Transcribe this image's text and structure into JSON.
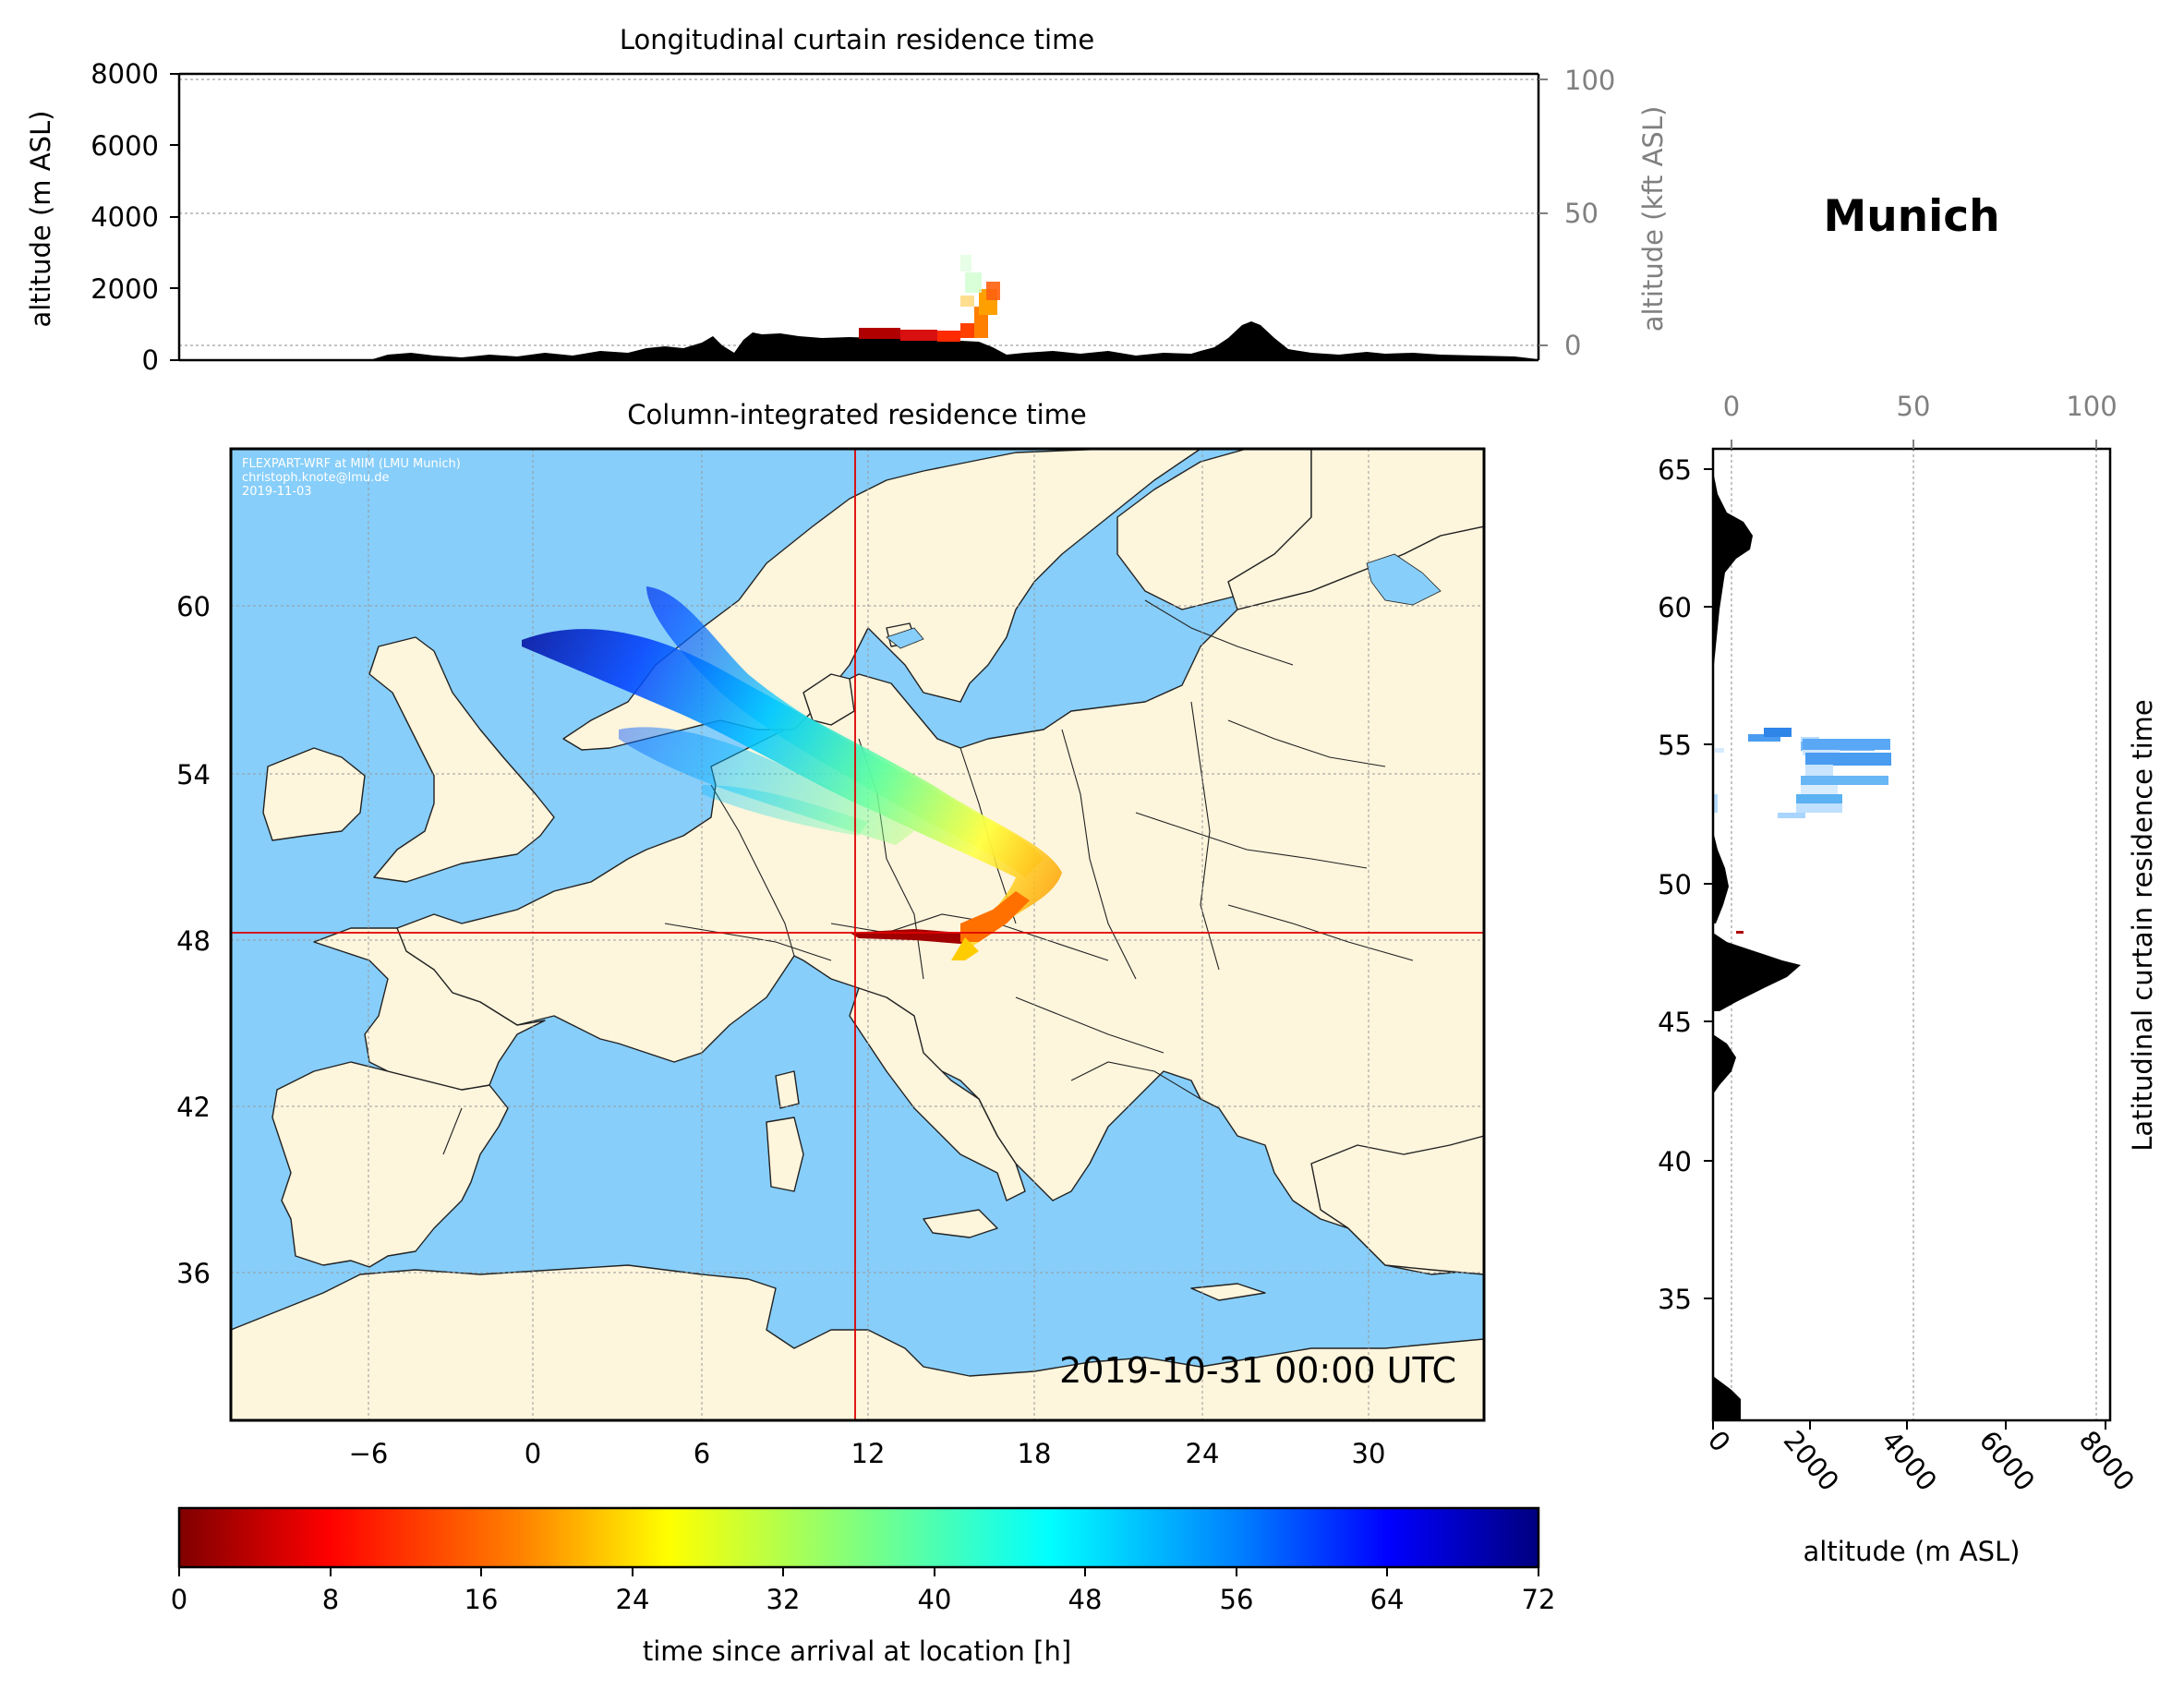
{
  "figure": {
    "location_title": "Munich",
    "timestamp": "2019-10-31 00:00 UTC",
    "credits": [
      "FLEXPART-WRF at MIM (LMU Munich)",
      "christoph.knote@lmu.de",
      "2019-11-03"
    ]
  },
  "top_panel": {
    "title": "Longitudinal curtain residence time",
    "ylabel_left": "altitude (m ASL)",
    "ylabel_right": "altitude (kft ASL)",
    "yticks_left": [
      "0",
      "2000",
      "4000",
      "6000",
      "8000"
    ],
    "yticks_right": [
      "0",
      "50",
      "100"
    ]
  },
  "map_panel": {
    "title": "Column-integrated residence time",
    "xticks": [
      "−6",
      "0",
      "6",
      "12",
      "18",
      "24",
      "30"
    ],
    "yticks": [
      "36",
      "42",
      "48",
      "54",
      "60"
    ],
    "marker": {
      "lon": 11.6,
      "lat": 48.1
    }
  },
  "side_panel": {
    "title": "Latitudinal curtain residence time",
    "xlabel": "altitude (m ASL)",
    "xticks_bottom": [
      "0",
      "2000",
      "4000",
      "6000",
      "8000"
    ],
    "xticks_top": [
      "0",
      "50",
      "100"
    ],
    "yticks": [
      "35",
      "40",
      "45",
      "50",
      "55",
      "60",
      "65"
    ]
  },
  "colorbar": {
    "label": "time since arrival at location [h]",
    "ticks": [
      "0",
      "8",
      "16",
      "24",
      "32",
      "40",
      "48",
      "56",
      "64",
      "72"
    ],
    "colormap": [
      "#7f0000",
      "#ff0000",
      "#ff7f00",
      "#ffff00",
      "#7fff7f",
      "#00ffff",
      "#007fff",
      "#0000ff",
      "#00007f"
    ]
  },
  "colors": {
    "sea": "#87cefa",
    "land": "#fdf5dc",
    "terrain": "#000000",
    "marker": "#e00000"
  }
}
